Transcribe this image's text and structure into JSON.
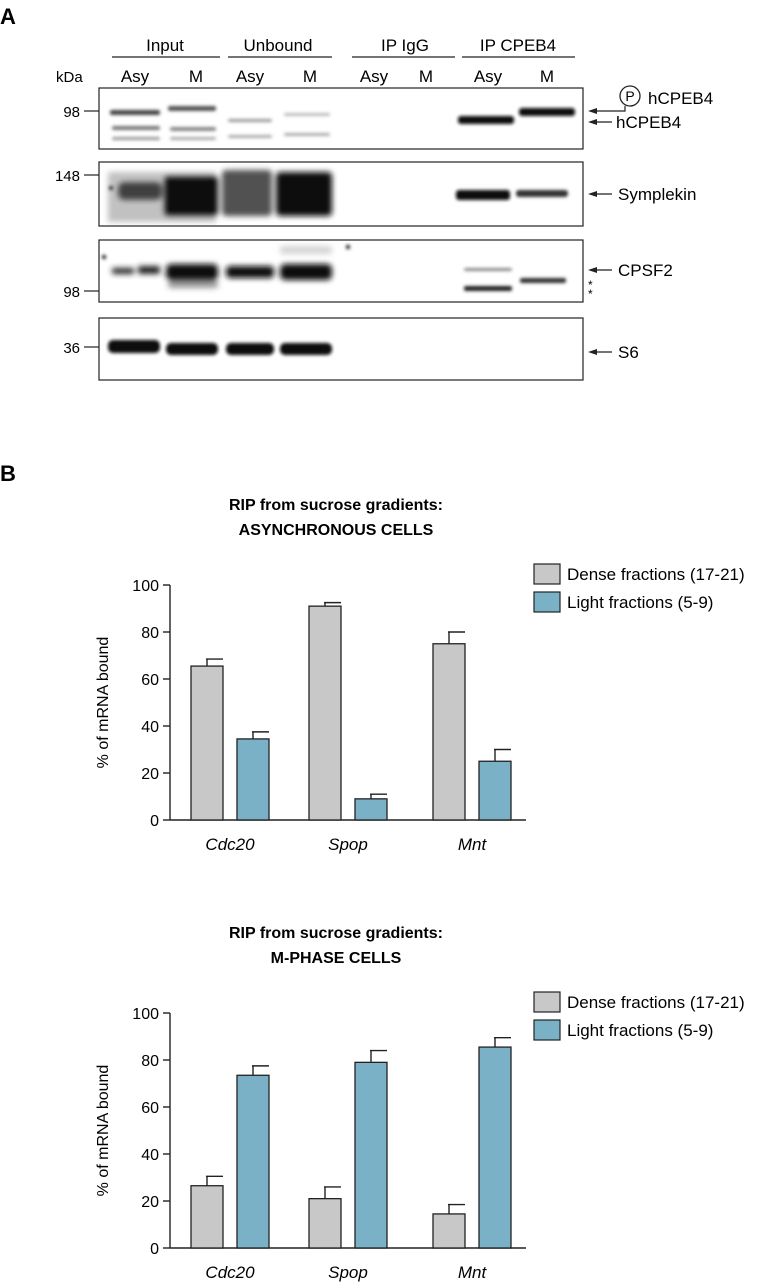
{
  "panel_a": {
    "letter": "A",
    "kda_label": "kDa",
    "groups": [
      "Input",
      "Unbound",
      "IP IgG",
      "IP CPEB4"
    ],
    "lanes": [
      "Asy",
      "M",
      "Asy",
      "M",
      "Asy",
      "M",
      "Asy",
      "M"
    ],
    "blots": [
      {
        "marker_labels": [
          "98"
        ],
        "bands": [
          "P hCPEB4",
          "hCPEB4"
        ],
        "phospho_symbol": "P"
      },
      {
        "marker_labels": [
          "148"
        ],
        "bands": [
          "Symplekin"
        ]
      },
      {
        "marker_labels": [
          "98"
        ],
        "bands": [
          "CPSF2"
        ],
        "asterisks": "*\n*"
      },
      {
        "marker_labels": [
          "36"
        ],
        "bands": [
          "S6"
        ]
      }
    ]
  },
  "panel_b": {
    "letter": "B"
  },
  "chart_data": [
    {
      "type": "bar",
      "title": "RIP from sucrose gradients:",
      "subtitle": "ASYNCHRONOUS CELLS",
      "ylabel": "% of mRNA bound",
      "xlabel": "",
      "ylim": [
        0,
        100
      ],
      "yticks": [
        0,
        20,
        40,
        60,
        80,
        100
      ],
      "categories": [
        "Cdc20",
        "Spop",
        "Mnt"
      ],
      "legend_position": "top-right",
      "grid": false,
      "series": [
        {
          "name": "Dense fractions (17-21)",
          "color": "#c8c8c8",
          "values": [
            65.5,
            91,
            75
          ],
          "errors": [
            3,
            1.5,
            5
          ]
        },
        {
          "name": "Light fractions (5-9)",
          "color": "#7ab1c7",
          "values": [
            34.5,
            9,
            25
          ],
          "errors": [
            3,
            2,
            5
          ]
        }
      ]
    },
    {
      "type": "bar",
      "title": "RIP from sucrose gradients:",
      "subtitle": "M-PHASE CELLS",
      "ylabel": "% of mRNA bound",
      "xlabel": "",
      "ylim": [
        0,
        100
      ],
      "yticks": [
        0,
        20,
        40,
        60,
        80,
        100
      ],
      "categories": [
        "Cdc20",
        "Spop",
        "Mnt"
      ],
      "legend_position": "top-right",
      "grid": false,
      "series": [
        {
          "name": "Dense fractions (17-21)",
          "color": "#c8c8c8",
          "values": [
            26.5,
            21,
            14.5
          ],
          "errors": [
            4,
            5,
            4
          ]
        },
        {
          "name": "Light fractions (5-9)",
          "color": "#7ab1c7",
          "values": [
            73.5,
            79,
            85.5
          ],
          "errors": [
            4,
            5,
            4
          ]
        }
      ]
    }
  ]
}
